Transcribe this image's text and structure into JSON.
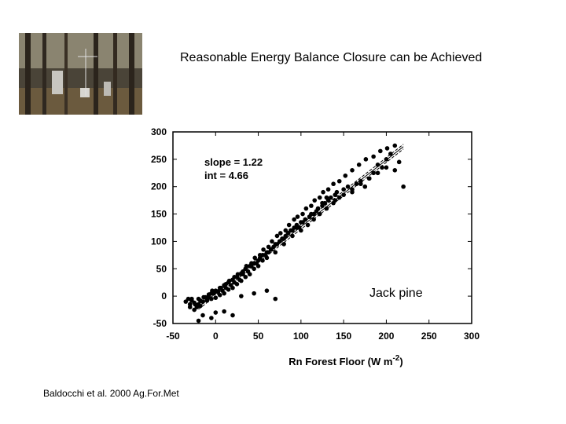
{
  "slide": {
    "title": "Reasonable Energy Balance Closure can be Achieved",
    "citation": "Baldocchi et al. 2000 Ag.For.Met"
  },
  "photo": {
    "icon": "forest-tower-photo"
  },
  "chart_data": {
    "type": "scatter",
    "xlabel": "Rn Forest Floor (W m",
    "xlabel_sup": "-2",
    "xlabel_end": ")",
    "ylabel": "",
    "xlim": [
      -50,
      300
    ],
    "ylim": [
      -50,
      300
    ],
    "xticks": [
      "-50",
      "0",
      "50",
      "100",
      "150",
      "200",
      "250",
      "300"
    ],
    "yticks": [
      "-50",
      "0",
      "50",
      "100",
      "150",
      "200",
      "250",
      "300"
    ],
    "grid": false,
    "annotations": {
      "slope": "slope = 1.22",
      "int": "int = 4.66",
      "site": "Jack pine"
    },
    "fit": {
      "slope": 1.22,
      "intercept": 4.66,
      "x_range": [
        -20,
        220
      ]
    },
    "series": [
      {
        "color": "#000000",
        "x": [
          -35,
          -32,
          -30,
          -28,
          -25,
          -22,
          -20,
          -18,
          -15,
          -12,
          -10,
          -8,
          -5,
          -2,
          0,
          3,
          5,
          8,
          10,
          12,
          15,
          18,
          20,
          22,
          25,
          28,
          30,
          32,
          35,
          38,
          40,
          42,
          45,
          48,
          50,
          52,
          55,
          58,
          60,
          62,
          65,
          68,
          70,
          72,
          75,
          78,
          80,
          82,
          85,
          88,
          90,
          92,
          95,
          98,
          100,
          102,
          105,
          108,
          110,
          112,
          115,
          118,
          120,
          122,
          125,
          128,
          130,
          132,
          135,
          138,
          140,
          142,
          145,
          150,
          155,
          160,
          165,
          170,
          175,
          180,
          185,
          190,
          195,
          200,
          205,
          210,
          215,
          220,
          -30,
          -25,
          -20,
          -15,
          -10,
          -5,
          0,
          5,
          10,
          15,
          20,
          25,
          30,
          35,
          40,
          45,
          50,
          55,
          60,
          65,
          70,
          75,
          80,
          85,
          90,
          95,
          100,
          105,
          110,
          115,
          120,
          125,
          130,
          140,
          150,
          160,
          170,
          180,
          190,
          200,
          -28,
          -24,
          -18,
          -14,
          -8,
          -4,
          2,
          6,
          12,
          16,
          22,
          26,
          32,
          36,
          42,
          46,
          52,
          56,
          62,
          66,
          72,
          76,
          82,
          86,
          92,
          96,
          102,
          106,
          112,
          116,
          122,
          126,
          132,
          138,
          145,
          152,
          160,
          168,
          176,
          185,
          193,
          201,
          210,
          -5,
          0,
          10,
          20,
          30,
          45,
          60,
          70,
          -20,
          -15
        ],
        "y": [
          -10,
          -5,
          -15,
          -8,
          -12,
          -20,
          -5,
          -18,
          -10,
          -2,
          -8,
          0,
          -5,
          5,
          -3,
          8,
          2,
          10,
          5,
          15,
          12,
          20,
          15,
          25,
          22,
          30,
          28,
          40,
          35,
          45,
          40,
          55,
          50,
          60,
          55,
          70,
          65,
          75,
          70,
          80,
          85,
          90,
          80,
          95,
          100,
          105,
          95,
          110,
          115,
          120,
          110,
          125,
          130,
          125,
          120,
          135,
          140,
          130,
          145,
          150,
          140,
          155,
          160,
          150,
          165,
          170,
          160,
          175,
          180,
          170,
          185,
          190,
          180,
          195,
          200,
          190,
          205,
          210,
          200,
          215,
          225,
          240,
          235,
          250,
          260,
          230,
          245,
          200,
          -20,
          -25,
          -15,
          -10,
          -5,
          5,
          10,
          15,
          20,
          25,
          30,
          35,
          40,
          50,
          55,
          60,
          65,
          75,
          80,
          85,
          95,
          100,
          105,
          115,
          120,
          125,
          135,
          140,
          145,
          150,
          160,
          170,
          180,
          175,
          185,
          195,
          205,
          215,
          225,
          235,
          -5,
          -15,
          -8,
          -2,
          3,
          10,
          8,
          15,
          22,
          28,
          35,
          40,
          45,
          55,
          60,
          70,
          75,
          85,
          90,
          100,
          110,
          115,
          120,
          130,
          140,
          145,
          150,
          160,
          165,
          175,
          180,
          190,
          195,
          205,
          210,
          220,
          230,
          240,
          250,
          255,
          265,
          270,
          275,
          -40,
          -30,
          -28,
          -35,
          0,
          5,
          10,
          -5,
          -45,
          -35
        ]
      }
    ]
  }
}
